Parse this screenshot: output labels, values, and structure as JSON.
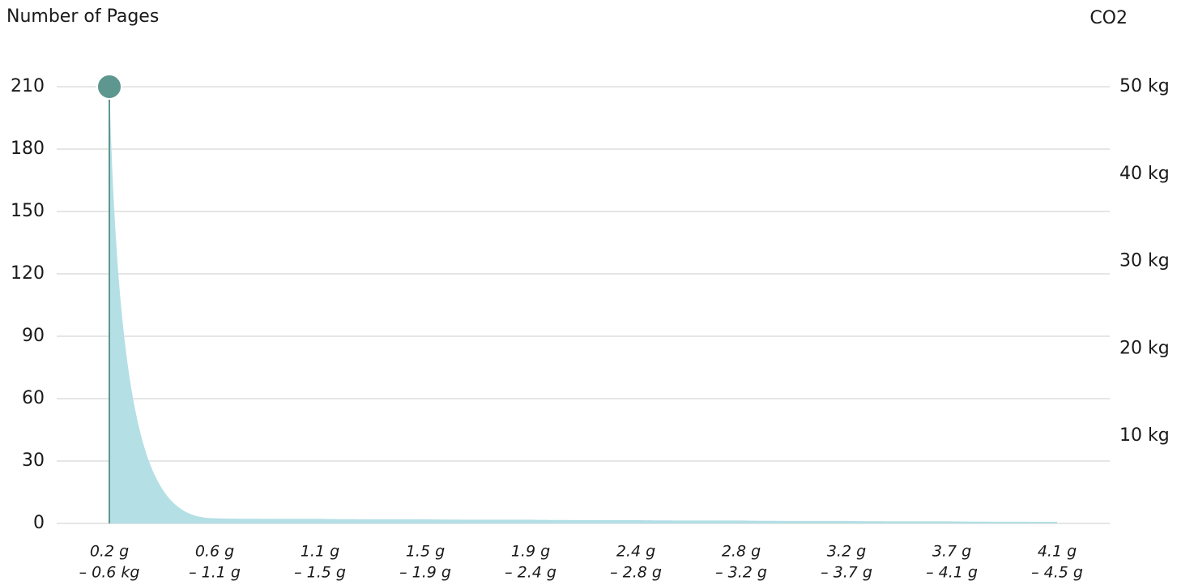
{
  "chart_data": {
    "type": "area",
    "y_label": "Number of Pages",
    "y2_label": "CO2",
    "categories": [
      [
        "0.2 g",
        "– 0.6 kg"
      ],
      [
        "0.6 g",
        "– 1.1 g"
      ],
      [
        "1.1 g",
        "– 1.5 g"
      ],
      [
        "1.5 g",
        "– 1.9 g"
      ],
      [
        "1.9 g",
        "– 2.4 g"
      ],
      [
        "2.4 g",
        "– 2.8 g"
      ],
      [
        "2.8 g",
        "– 3.2 g"
      ],
      [
        "3.2 g",
        "– 3.7 g"
      ],
      [
        "3.7 g",
        "– 4.1 g"
      ],
      [
        "4.1 g",
        "– 4.5 g"
      ]
    ],
    "series": [
      {
        "color": "#b3dfe5",
        "marker_color": "#5e9690",
        "values": [
          210,
          2.5,
          2.2,
          2,
          1.8,
          1.6,
          1.4,
          1.2,
          1,
          0.8
        ]
      }
    ],
    "ylim": [
      0,
      210
    ],
    "yticks": [
      0,
      30,
      60,
      90,
      120,
      150,
      180,
      210
    ],
    "y2lim": [
      0,
      50
    ],
    "y2ticks": [
      {
        "value": 10,
        "label": "10 kg"
      },
      {
        "value": 20,
        "label": "20 kg"
      },
      {
        "value": 30,
        "label": "30 kg"
      },
      {
        "value": 40,
        "label": "40 kg"
      },
      {
        "value": 50,
        "label": "50 kg"
      }
    ],
    "grid": true
  }
}
